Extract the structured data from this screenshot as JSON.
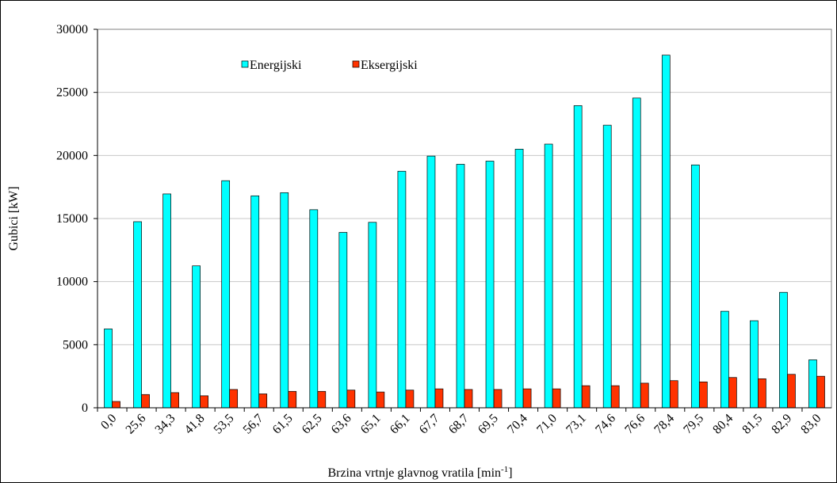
{
  "chart_data": {
    "type": "bar",
    "ylabel": "Gubici [kW]",
    "xlabel": [
      "Brzina vrtnje glavnog vratila [min",
      "-1",
      "]"
    ],
    "categories": [
      "0,0",
      "25,6",
      "34,3",
      "41,8",
      "53,5",
      "56,7",
      "61,5",
      "62,5",
      "63,6",
      "65,1",
      "66,1",
      "67,7",
      "68,7",
      "69,5",
      "70,4",
      "71,0",
      "73,1",
      "74,6",
      "76,6",
      "78,4",
      "79,5",
      "80,4",
      "81,5",
      "82,9",
      "83,0"
    ],
    "series": [
      {
        "name": "Energijski",
        "color": "#00ffff",
        "values": [
          6250,
          14750,
          16950,
          11250,
          18000,
          16800,
          17050,
          15700,
          13900,
          14700,
          18750,
          19950,
          19300,
          19550,
          20500,
          20900,
          23950,
          22400,
          24550,
          27950,
          19250,
          7650,
          6900,
          9150,
          3800
        ]
      },
      {
        "name": "Eksergijski",
        "color": "#ff3300",
        "values": [
          500,
          1050,
          1200,
          950,
          1450,
          1100,
          1300,
          1300,
          1400,
          1250,
          1400,
          1500,
          1450,
          1450,
          1500,
          1500,
          1750,
          1750,
          1950,
          2150,
          2050,
          2400,
          2300,
          2650,
          2500
        ]
      }
    ],
    "ylim": [
      0,
      30000
    ],
    "yticks": [
      0,
      5000,
      10000,
      15000,
      20000,
      25000,
      30000
    ],
    "grid": true,
    "legend": "top"
  }
}
